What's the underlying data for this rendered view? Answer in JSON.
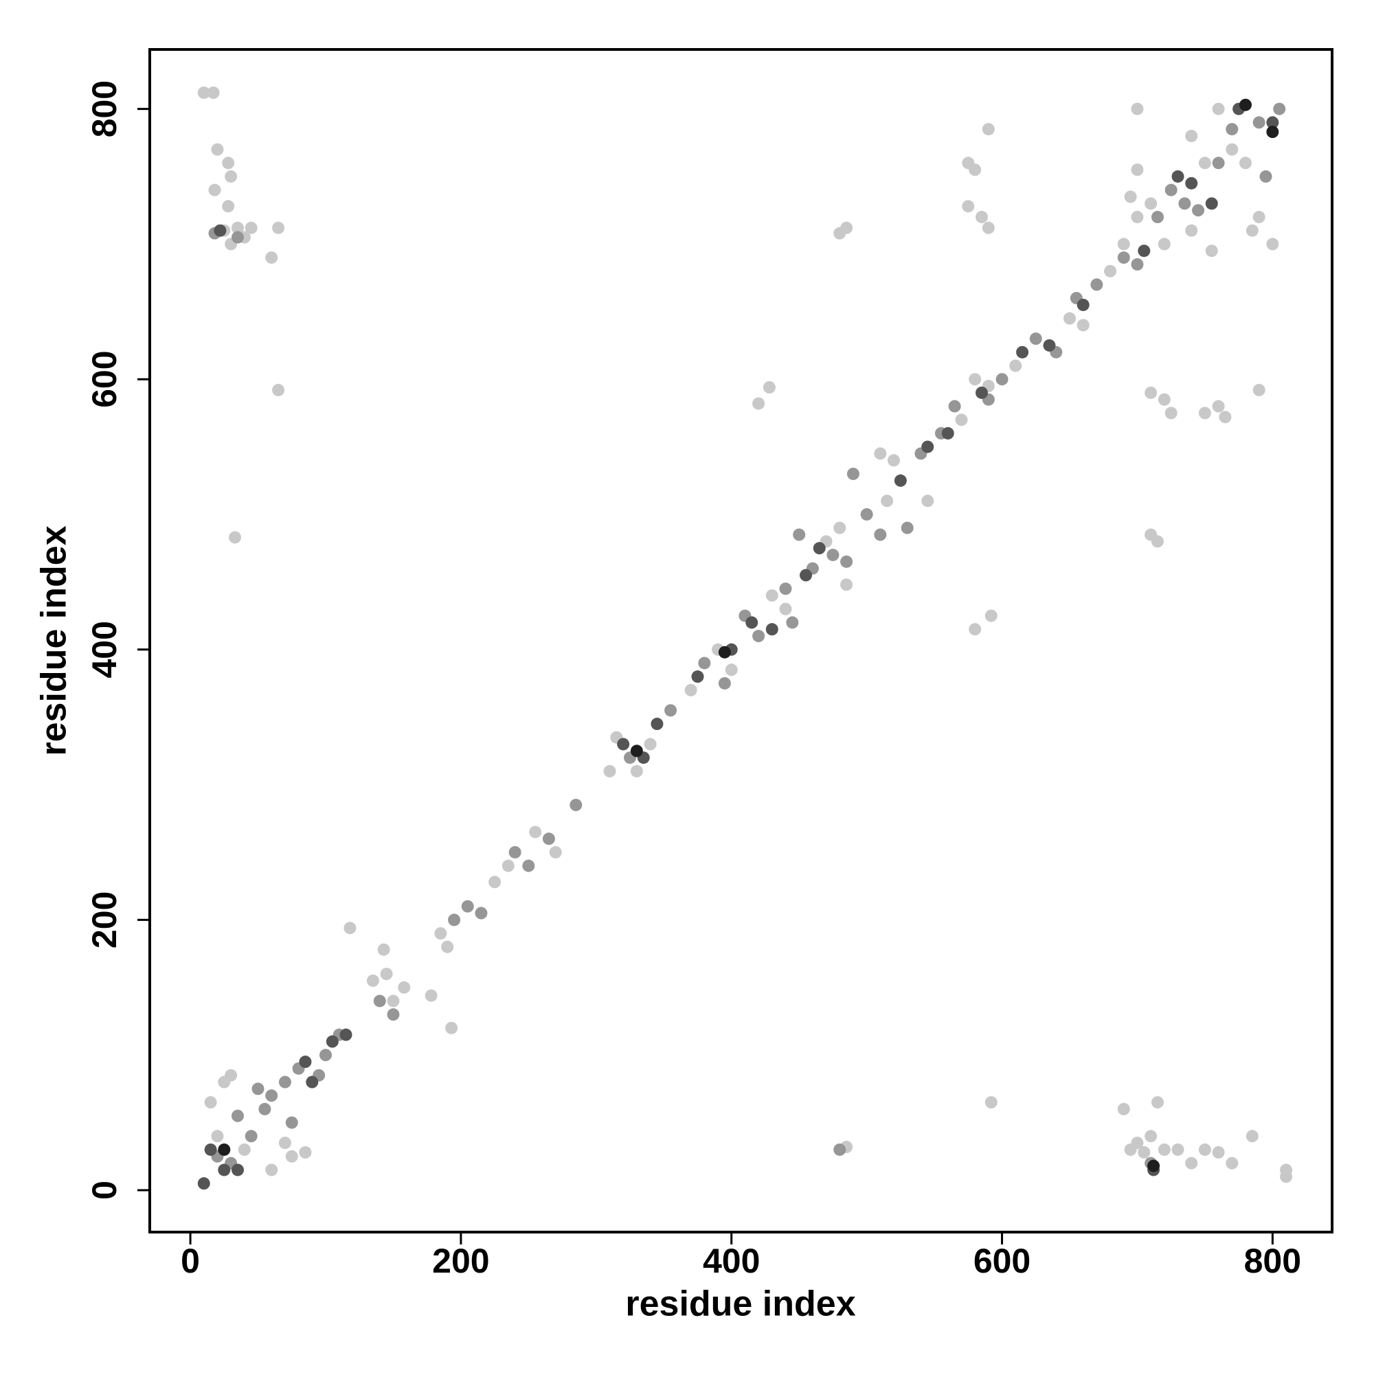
{
  "chart_data": {
    "type": "scatter",
    "x_label": "residue index",
    "y_label": "residue index",
    "xlim": [
      -30,
      844
    ],
    "ylim": [
      -31,
      844
    ],
    "xticks": [
      0,
      200,
      400,
      600,
      800
    ],
    "yticks": [
      0,
      200,
      400,
      600,
      800
    ],
    "series": [
      {
        "color": "#c8c8c8",
        "x": [
          10,
          17,
          18,
          20,
          28,
          30,
          25,
          30,
          35,
          40,
          45,
          60,
          65,
          28,
          65,
          33,
          690,
          695,
          700,
          705,
          710,
          715,
          720,
          730,
          740,
          750,
          760,
          770,
          785,
          810,
          810,
          590,
          575,
          580,
          575,
          585,
          590,
          485,
          480,
          700,
          700,
          710,
          720,
          725,
          750,
          760,
          765,
          790,
          420,
          428,
          580,
          592,
          592,
          710,
          715,
          485,
          118,
          143,
          178,
          193,
          485,
          15,
          25,
          30,
          20,
          40,
          60,
          75,
          85,
          70,
          135,
          145,
          150,
          158,
          185,
          190,
          225,
          235,
          255,
          270,
          310,
          315,
          330,
          340,
          370,
          390,
          400,
          430,
          440,
          470,
          480,
          510,
          515,
          520,
          545,
          570,
          580,
          590,
          610,
          650,
          660,
          680,
          690,
          695,
          700,
          710,
          720,
          740,
          750,
          760,
          770,
          780,
          790,
          800,
          785,
          755,
          740
        ],
        "values": [
          812,
          812,
          740,
          770,
          760,
          750,
          710,
          700,
          712,
          705,
          712,
          690,
          712,
          728,
          592,
          483,
          60,
          30,
          35,
          28,
          40,
          65,
          30,
          30,
          20,
          30,
          28,
          20,
          40,
          15,
          10,
          785,
          760,
          755,
          728,
          720,
          712,
          712,
          708,
          800,
          755,
          590,
          585,
          575,
          575,
          580,
          572,
          592,
          582,
          594,
          415,
          425,
          65,
          485,
          480,
          448,
          194,
          178,
          144,
          120,
          32,
          65,
          80,
          85,
          40,
          30,
          15,
          25,
          28,
          35,
          155,
          160,
          140,
          150,
          190,
          180,
          228,
          240,
          265,
          250,
          310,
          335,
          310,
          330,
          370,
          400,
          385,
          440,
          430,
          480,
          490,
          545,
          510,
          540,
          510,
          570,
          600,
          595,
          610,
          645,
          640,
          680,
          700,
          735,
          720,
          730,
          700,
          780,
          760,
          800,
          770,
          760,
          720,
          700,
          710,
          695,
          710
        ]
      },
      {
        "color": "#969696",
        "x": [
          20,
          30,
          35,
          45,
          50,
          55,
          60,
          70,
          75,
          80,
          95,
          100,
          110,
          140,
          150,
          195,
          205,
          215,
          240,
          250,
          265,
          285,
          325,
          355,
          380,
          395,
          410,
          420,
          440,
          450,
          460,
          475,
          485,
          490,
          500,
          510,
          530,
          540,
          555,
          565,
          590,
          600,
          625,
          640,
          655,
          670,
          690,
          700,
          715,
          725,
          735,
          745,
          760,
          770,
          790,
          795,
          805,
          710,
          480,
          35,
          18,
          445
        ],
        "values": [
          25,
          20,
          55,
          40,
          75,
          60,
          70,
          80,
          50,
          90,
          85,
          100,
          115,
          140,
          130,
          200,
          210,
          205,
          250,
          240,
          260,
          285,
          320,
          355,
          390,
          375,
          425,
          410,
          445,
          485,
          460,
          470,
          465,
          530,
          500,
          485,
          490,
          545,
          560,
          580,
          585,
          600,
          630,
          620,
          660,
          670,
          690,
          685,
          720,
          740,
          730,
          725,
          760,
          785,
          790,
          750,
          800,
          20,
          30,
          705,
          708,
          420
        ]
      },
      {
        "color": "#555555",
        "x": [
          10,
          15,
          25,
          35,
          90,
          85,
          105,
          115,
          320,
          335,
          345,
          375,
          400,
          415,
          430,
          455,
          465,
          525,
          545,
          560,
          585,
          615,
          635,
          660,
          705,
          730,
          740,
          755,
          775,
          800,
          22,
          712
        ],
        "values": [
          5,
          30,
          15,
          15,
          80,
          95,
          110,
          115,
          330,
          320,
          345,
          380,
          400,
          420,
          415,
          455,
          475,
          525,
          550,
          560,
          590,
          620,
          625,
          655,
          695,
          750,
          745,
          730,
          800,
          790,
          710,
          15
        ]
      },
      {
        "color": "#1e1e1e",
        "x": [
          780,
          800,
          395,
          330,
          25,
          712
        ],
        "values": [
          803,
          783,
          398,
          325,
          30,
          18
        ]
      }
    ]
  }
}
